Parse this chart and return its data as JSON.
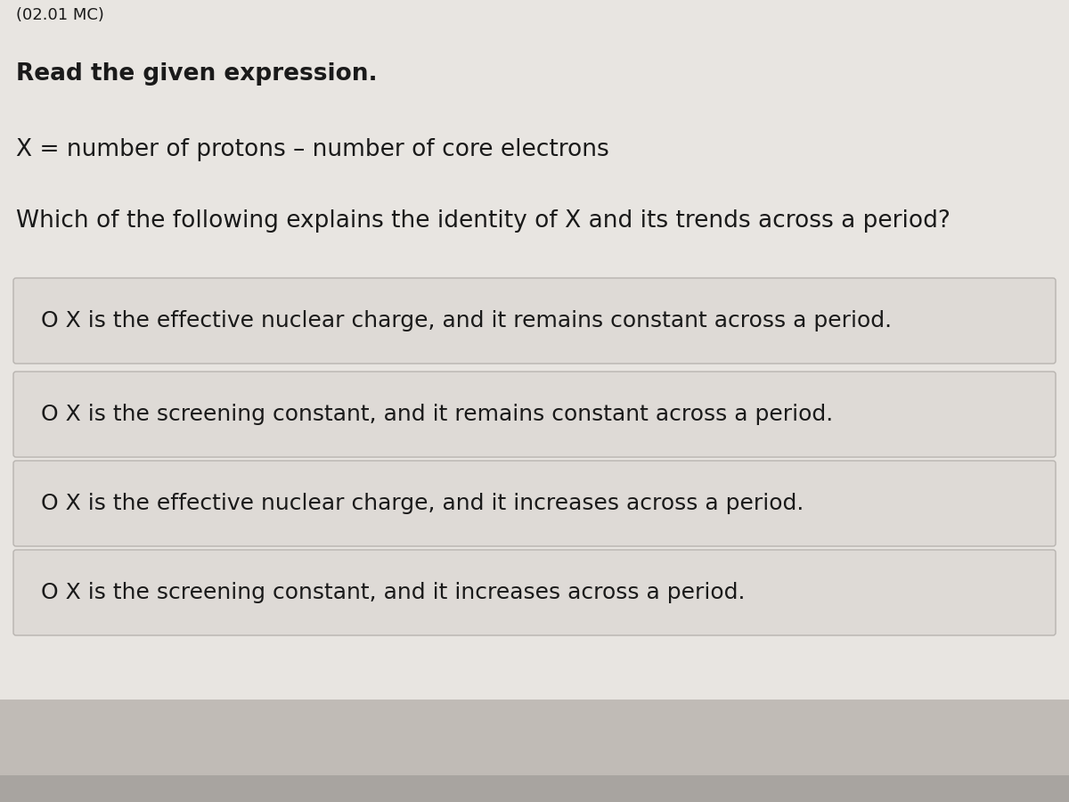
{
  "bg_main": "#e8e5e1",
  "bg_bottom_strip": "#c0bbb6",
  "bg_very_bottom": "#a8a4a0",
  "box_color": "#dedad6",
  "box_edge_color": "#b8b4b0",
  "text_color": "#1a1a1a",
  "header_partial": "(02.01 MC)",
  "instruction": "Read the given expression.",
  "expression": "X = number of protons – number of core electrons",
  "question": "Which of the following explains the identity of X and its trends across a period?",
  "options": [
    "O X is the effective nuclear charge, and it remains constant across a period.",
    "O X is the screening constant, and it remains constant across a period.",
    "O X is the effective nuclear charge, and it increases across a period.",
    "O X is the screening constant, and it increases across a period."
  ],
  "fig_width": 12.0,
  "fig_height": 9.0,
  "dpi": 100
}
